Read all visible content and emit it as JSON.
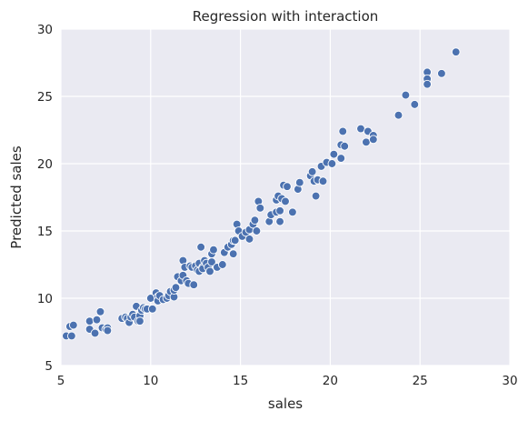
{
  "chart_data": {
    "type": "scatter",
    "title": "Regression with interaction",
    "xlabel": "sales",
    "ylabel": "Predicted sales",
    "xlim": [
      5,
      30
    ],
    "ylim": [
      5,
      30
    ],
    "xticks": [
      5,
      10,
      15,
      20,
      25,
      30
    ],
    "yticks": [
      5,
      10,
      15,
      20,
      25,
      30
    ],
    "grid": true,
    "background": "#eaeaf2",
    "point_color": "#4c72b0",
    "points": [
      [
        5.3,
        7.2
      ],
      [
        5.6,
        7.2
      ],
      [
        5.5,
        7.9
      ],
      [
        5.7,
        8.0
      ],
      [
        6.6,
        7.7
      ],
      [
        6.6,
        8.3
      ],
      [
        6.9,
        7.4
      ],
      [
        7.0,
        8.4
      ],
      [
        7.2,
        9.0
      ],
      [
        7.3,
        7.8
      ],
      [
        7.5,
        7.7
      ],
      [
        7.6,
        7.8
      ],
      [
        7.6,
        7.6
      ],
      [
        8.4,
        8.5
      ],
      [
        8.6,
        8.6
      ],
      [
        8.7,
        8.5
      ],
      [
        8.8,
        8.2
      ],
      [
        8.9,
        8.6
      ],
      [
        9.0,
        8.8
      ],
      [
        9.1,
        8.6
      ],
      [
        9.2,
        9.4
      ],
      [
        9.3,
        8.3
      ],
      [
        9.4,
        8.7
      ],
      [
        9.4,
        8.3
      ],
      [
        9.5,
        9.1
      ],
      [
        9.6,
        9.3
      ],
      [
        9.7,
        9.2
      ],
      [
        9.8,
        9.2
      ],
      [
        10.0,
        10.0
      ],
      [
        10.1,
        9.2
      ],
      [
        10.3,
        10.4
      ],
      [
        10.4,
        10.1
      ],
      [
        10.4,
        9.8
      ],
      [
        10.5,
        10.2
      ],
      [
        10.7,
        9.9
      ],
      [
        10.9,
        10.0
      ],
      [
        11.0,
        10.2
      ],
      [
        11.1,
        10.5
      ],
      [
        11.3,
        10.1
      ],
      [
        11.3,
        10.6
      ],
      [
        11.4,
        10.8
      ],
      [
        11.5,
        11.6
      ],
      [
        11.7,
        11.3
      ],
      [
        11.8,
        11.7
      ],
      [
        11.8,
        12.8
      ],
      [
        11.9,
        12.3
      ],
      [
        12.0,
        11.3
      ],
      [
        12.1,
        11.1
      ],
      [
        12.2,
        12.4
      ],
      [
        12.3,
        12.3
      ],
      [
        12.4,
        11.0
      ],
      [
        12.5,
        12.4
      ],
      [
        12.6,
        12.1
      ],
      [
        12.7,
        12.6
      ],
      [
        12.7,
        12.0
      ],
      [
        12.8,
        13.8
      ],
      [
        12.9,
        12.3
      ],
      [
        12.9,
        12.2
      ],
      [
        13.0,
        12.8
      ],
      [
        13.1,
        12.6
      ],
      [
        13.2,
        12.3
      ],
      [
        13.3,
        12.0
      ],
      [
        13.4,
        12.7
      ],
      [
        13.4,
        13.3
      ],
      [
        13.5,
        13.6
      ],
      [
        13.7,
        12.3
      ],
      [
        14.0,
        12.5
      ],
      [
        14.1,
        13.4
      ],
      [
        14.3,
        13.8
      ],
      [
        14.5,
        14.0
      ],
      [
        14.6,
        14.3
      ],
      [
        14.6,
        13.3
      ],
      [
        14.7,
        14.3
      ],
      [
        14.8,
        15.5
      ],
      [
        14.9,
        15.0
      ],
      [
        15.1,
        14.6
      ],
      [
        15.3,
        14.9
      ],
      [
        15.5,
        15.1
      ],
      [
        15.5,
        14.4
      ],
      [
        15.7,
        15.5
      ],
      [
        15.8,
        15.8
      ],
      [
        15.9,
        15.0
      ],
      [
        16.0,
        17.2
      ],
      [
        16.1,
        16.7
      ],
      [
        16.6,
        15.7
      ],
      [
        16.7,
        16.2
      ],
      [
        17.0,
        17.3
      ],
      [
        17.0,
        16.4
      ],
      [
        17.1,
        17.6
      ],
      [
        17.2,
        15.7
      ],
      [
        17.2,
        16.5
      ],
      [
        17.3,
        17.4
      ],
      [
        17.4,
        18.4
      ],
      [
        17.5,
        17.2
      ],
      [
        17.6,
        18.3
      ],
      [
        17.9,
        16.4
      ],
      [
        18.2,
        18.1
      ],
      [
        18.3,
        18.6
      ],
      [
        18.9,
        19.1
      ],
      [
        19.0,
        19.4
      ],
      [
        19.1,
        18.7
      ],
      [
        19.2,
        17.6
      ],
      [
        19.3,
        18.8
      ],
      [
        19.5,
        19.8
      ],
      [
        19.6,
        18.7
      ],
      [
        19.8,
        20.1
      ],
      [
        20.1,
        20.0
      ],
      [
        20.2,
        20.7
      ],
      [
        20.6,
        20.4
      ],
      [
        20.6,
        21.4
      ],
      [
        20.7,
        22.4
      ],
      [
        20.8,
        21.3
      ],
      [
        21.7,
        22.6
      ],
      [
        22.0,
        21.6
      ],
      [
        22.1,
        22.4
      ],
      [
        22.4,
        22.1
      ],
      [
        22.4,
        21.8
      ],
      [
        23.8,
        23.6
      ],
      [
        24.2,
        25.1
      ],
      [
        24.7,
        24.4
      ],
      [
        25.4,
        26.8
      ],
      [
        25.4,
        26.3
      ],
      [
        25.4,
        25.9
      ],
      [
        26.2,
        26.7
      ],
      [
        27.0,
        28.3
      ]
    ]
  }
}
